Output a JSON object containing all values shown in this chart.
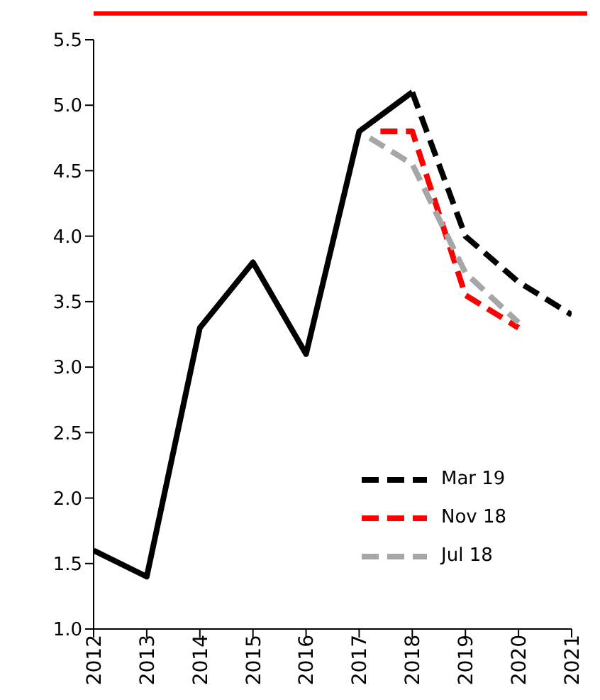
{
  "chart_data": {
    "type": "line",
    "xlim": [
      2012,
      2021
    ],
    "xticks": [
      2012,
      2013,
      2014,
      2015,
      2016,
      2017,
      2018,
      2019,
      2020,
      2021
    ],
    "ylim": [
      1,
      5.5
    ],
    "yticks": [
      {
        "value": 1,
        "label": "1.0"
      },
      {
        "value": 1.5,
        "label": "1.5"
      },
      {
        "value": 2,
        "label": "2.0"
      },
      {
        "value": 2.5,
        "label": "2.5"
      },
      {
        "value": 3,
        "label": "3.0"
      },
      {
        "value": 3.5,
        "label": "3.5"
      },
      {
        "value": 4,
        "label": "4.0"
      },
      {
        "value": 4.5,
        "label": "4.5"
      },
      {
        "value": 5,
        "label": "5.0"
      },
      {
        "value": 5.5,
        "label": "5.5"
      }
    ],
    "grid": false,
    "legend": "bottom right",
    "marker": "none",
    "series": [
      {
        "color": "#000000",
        "line_style": "solid",
        "x": [
          2012,
          2013,
          2014,
          2015,
          2016,
          2017,
          2018
        ],
        "values": [
          1.6,
          1.4,
          3.3,
          3.8,
          3.1,
          4.8,
          5.1
        ]
      },
      {
        "name": "Mar 19",
        "color": "#000000",
        "line_style": "dashed",
        "x": [
          2018,
          2019,
          2020,
          2021
        ],
        "values": [
          5.1,
          4.0,
          3.65,
          3.4
        ]
      },
      {
        "name": "Nov 18",
        "color": "#ff0000",
        "line_style": "dashed",
        "x": [
          2017.4,
          2018,
          2019,
          2020
        ],
        "values": [
          4.8,
          4.8,
          3.55,
          3.3
        ]
      },
      {
        "name": "Jul 18",
        "color": "#a6a6a6",
        "line_style": "dashed",
        "x": [
          2017.2,
          2018,
          2019,
          2020
        ],
        "values": [
          4.75,
          4.55,
          3.72,
          3.34
        ]
      }
    ]
  }
}
